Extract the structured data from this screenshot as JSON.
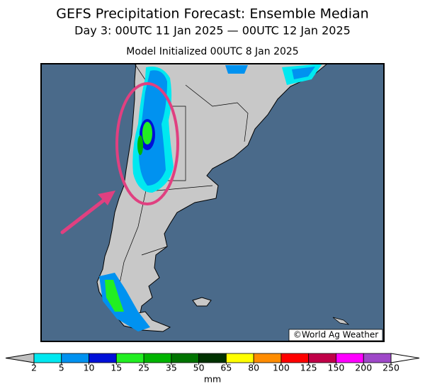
{
  "title": "GEFS Precipitation Forecast: Ensemble Median",
  "subtitle": "Day 3: 00UTC 11 Jan 2025 — 00UTC 12 Jan 2025",
  "initialized": "Model Initialized 00UTC 8 Jan 2025",
  "credit": "©World Ag Weather",
  "colorbar": {
    "ticks": [
      2,
      5,
      10,
      15,
      25,
      35,
      50,
      65,
      80,
      100,
      125,
      150,
      200,
      250
    ],
    "colors": [
      "#00e8f0",
      "#0092f0",
      "#0010d8",
      "#22ee22",
      "#00b400",
      "#007400",
      "#003200",
      "#ffff00",
      "#ff8c00",
      "#ff0000",
      "#c00048",
      "#ff00ff",
      "#9e48c8"
    ],
    "under_color": "#c0c0c0",
    "over_color": "#ffffff",
    "unit": "mm"
  }
}
